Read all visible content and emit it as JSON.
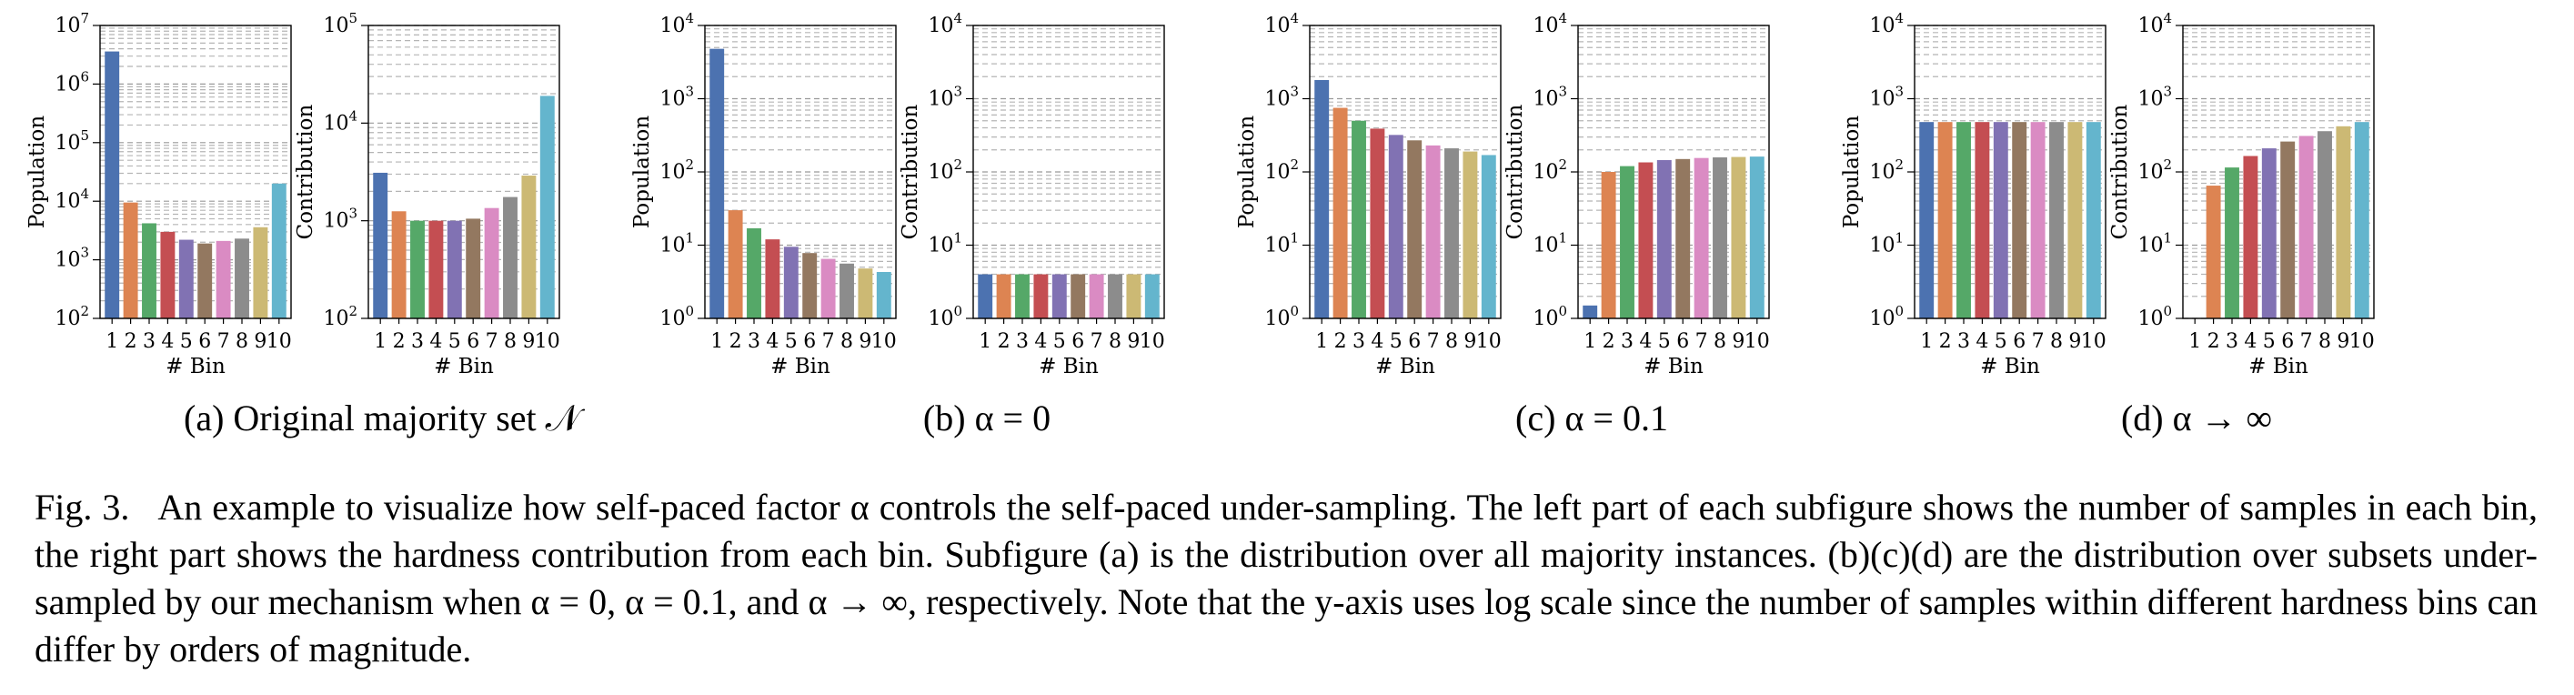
{
  "chart_data": [
    {
      "type": "bar",
      "subfigure": "a",
      "panel": "left",
      "ylabel": "Population",
      "xlabel": "# Bin",
      "yscale": "log",
      "ylim": [
        100,
        10000000
      ],
      "categories": [
        "1",
        "2",
        "3",
        "4",
        "5",
        "6",
        "7",
        "8",
        "9",
        "10"
      ],
      "values": [
        3600000,
        9500,
        4200,
        3000,
        2200,
        1900,
        2100,
        2300,
        3600,
        20000
      ]
    },
    {
      "type": "bar",
      "subfigure": "a",
      "panel": "right",
      "ylabel": "Contribution",
      "xlabel": "# Bin",
      "yscale": "log",
      "ylim": [
        100,
        100000
      ],
      "categories": [
        "1",
        "2",
        "3",
        "4",
        "5",
        "6",
        "7",
        "8",
        "9",
        "10"
      ],
      "values": [
        3100,
        1250,
        1000,
        1000,
        1000,
        1050,
        1350,
        1750,
        2900,
        19000
      ]
    },
    {
      "type": "bar",
      "subfigure": "b",
      "panel": "left",
      "ylabel": "Population",
      "xlabel": "# Bin",
      "yscale": "log",
      "ylim": [
        1,
        10000
      ],
      "categories": [
        "1",
        "2",
        "3",
        "4",
        "5",
        "6",
        "7",
        "8",
        "9",
        "10"
      ],
      "values": [
        4800,
        30,
        17,
        12,
        9.5,
        7.8,
        6.5,
        5.6,
        4.8,
        4.3
      ]
    },
    {
      "type": "bar",
      "subfigure": "b",
      "panel": "right",
      "ylabel": "Contribution",
      "xlabel": "# Bin",
      "yscale": "log",
      "ylim": [
        1,
        10000
      ],
      "categories": [
        "1",
        "2",
        "3",
        "4",
        "5",
        "6",
        "7",
        "8",
        "9",
        "10"
      ],
      "values": [
        4,
        4,
        4,
        4,
        4,
        4,
        4,
        4,
        4,
        4
      ]
    },
    {
      "type": "bar",
      "subfigure": "c",
      "panel": "left",
      "ylabel": "Population",
      "xlabel": "# Bin",
      "yscale": "log",
      "ylim": [
        1,
        10000
      ],
      "categories": [
        "1",
        "2",
        "3",
        "4",
        "5",
        "6",
        "7",
        "8",
        "9",
        "10"
      ],
      "values": [
        1800,
        750,
        500,
        390,
        320,
        270,
        230,
        210,
        190,
        170
      ]
    },
    {
      "type": "bar",
      "subfigure": "c",
      "panel": "right",
      "ylabel": "Contribution",
      "xlabel": "# Bin",
      "yscale": "log",
      "ylim": [
        1,
        10000
      ],
      "categories": [
        "1",
        "2",
        "3",
        "4",
        "5",
        "6",
        "7",
        "8",
        "9",
        "10"
      ],
      "values": [
        1.5,
        100,
        120,
        135,
        145,
        150,
        155,
        158,
        160,
        162
      ]
    },
    {
      "type": "bar",
      "subfigure": "d",
      "panel": "left",
      "ylabel": "Population",
      "xlabel": "# Bin",
      "yscale": "log",
      "ylim": [
        1,
        10000
      ],
      "categories": [
        "1",
        "2",
        "3",
        "4",
        "5",
        "6",
        "7",
        "8",
        "9",
        "10"
      ],
      "values": [
        480,
        480,
        480,
        480,
        480,
        480,
        480,
        480,
        480,
        480
      ]
    },
    {
      "type": "bar",
      "subfigure": "d",
      "panel": "right",
      "ylabel": "Contribution",
      "xlabel": "# Bin",
      "yscale": "log",
      "ylim": [
        1,
        10000
      ],
      "categories": [
        "1",
        "2",
        "3",
        "4",
        "5",
        "6",
        "7",
        "8",
        "9",
        "10"
      ],
      "values": [
        1,
        65,
        115,
        165,
        210,
        260,
        310,
        360,
        420,
        480
      ]
    }
  ],
  "bar_colors": [
    "#4c72b0",
    "#dd8452",
    "#55a868",
    "#c44e52",
    "#8172b3",
    "#937860",
    "#da8bc3",
    "#8c8c8c",
    "#ccb974",
    "#64b5cd"
  ],
  "subcaptions": [
    {
      "label": "(a)",
      "text": "Original majority set 𝒩"
    },
    {
      "label": "(b)",
      "text": "α = 0"
    },
    {
      "label": "(c)",
      "text": "α = 0.1"
    },
    {
      "label": "(d)",
      "text": "α → ∞"
    }
  ],
  "caption": {
    "label": "Fig. 3.",
    "text": "An example to visualize how self-paced factor α controls the self-paced under-sampling. The left part of each subfigure shows the number of samples in each bin, the right part shows the hardness contribution from each bin. Subfigure (a) is the distribution over all majority instances. (b)(c)(d) are the distribution over subsets under-sampled by our mechanism when α = 0, α = 0.1, and α → ∞, respectively. Note that the y-axis uses log scale since the number of samples within different hardness bins can differ by orders of magnitude."
  }
}
